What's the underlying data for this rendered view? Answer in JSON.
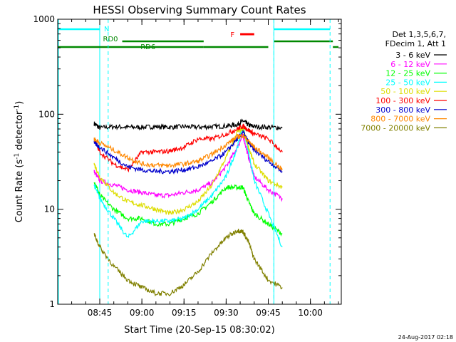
{
  "chart_data": {
    "type": "line",
    "title": "HESSI Observing Summary Count Rates",
    "xlabel": "Start Time (20-Sep-15 08:30:02)",
    "ylabel": "Count Rate (s⁻¹ detector⁻¹)",
    "ylabel_parts": {
      "main": "Count Rate (s",
      "exp1": "-1",
      "mid": " detector",
      "exp2": "-1",
      "end": ")"
    },
    "y_scale": "log",
    "ylim": [
      1,
      1000
    ],
    "xlim": [
      "08:30:02",
      "10:11:00"
    ],
    "x_ticks": [
      "08:45",
      "09:00",
      "09:15",
      "09:30",
      "09:45",
      "10:00"
    ],
    "y_ticks": [
      "1",
      "10",
      "100",
      "1000"
    ],
    "grid": false,
    "legend_position": "right",
    "legend_header": [
      "Det 1,3,5,6,7,",
      "FDecim 1, Att 1"
    ],
    "date_stamp": "24-Aug-2017 02:18",
    "night_intervals": [
      [
        "08:30:02",
        "08:45"
      ],
      [
        "09:47",
        "10:11"
      ]
    ],
    "saa_markers": [
      "08:30:02",
      "08:48",
      "09:47",
      "10:07"
    ],
    "annotations": [
      {
        "label": "N",
        "color": "#00ffff",
        "segments": [
          [
            "08:30:02",
            "08:45"
          ],
          [
            "09:47",
            "10:07"
          ]
        ]
      },
      {
        "label": "F",
        "color": "#ff0000",
        "segments": [
          [
            "09:35",
            "09:40"
          ]
        ]
      },
      {
        "label": "RD0",
        "color": "#008800",
        "segments": [
          [
            "08:53",
            "09:22"
          ],
          [
            "09:47",
            "10:08"
          ]
        ]
      },
      {
        "label": "RD6",
        "color": "#008800",
        "segments": [
          [
            "08:30:02",
            "09:22"
          ],
          [
            "09:22",
            "09:45"
          ],
          [
            "10:08",
            "10:10"
          ]
        ]
      }
    ],
    "series": [
      {
        "name": "3 - 6 keV",
        "color": "#000000",
        "x": [
          "08:43",
          "08:45",
          "08:50",
          "08:55",
          "09:00",
          "09:05",
          "09:10",
          "09:15",
          "09:20",
          "09:25",
          "09:30",
          "09:34",
          "09:36",
          "09:38",
          "09:40",
          "09:45",
          "09:50"
        ],
        "y": [
          80,
          72,
          74,
          73,
          73,
          74,
          73,
          74,
          73,
          74,
          75,
          78,
          85,
          77,
          74,
          73,
          72
        ]
      },
      {
        "name": "6 - 12 keV",
        "color": "#ff00ff",
        "x": [
          "08:43",
          "08:45",
          "08:50",
          "08:55",
          "09:00",
          "09:05",
          "09:10",
          "09:15",
          "09:20",
          "09:25",
          "09:30",
          "09:34",
          "09:36",
          "09:38",
          "09:40",
          "09:45",
          "09:50"
        ],
        "y": [
          25,
          20,
          18,
          16,
          15,
          14,
          14,
          15,
          16,
          19,
          28,
          45,
          60,
          35,
          22,
          16,
          13
        ]
      },
      {
        "name": "12 - 25 keV",
        "color": "#00ff00",
        "x": [
          "08:43",
          "08:45",
          "08:50",
          "08:55",
          "09:00",
          "09:05",
          "09:10",
          "09:15",
          "09:20",
          "09:25",
          "09:30",
          "09:34",
          "09:36",
          "09:38",
          "09:40",
          "09:45",
          "09:50"
        ],
        "y": [
          20,
          14,
          10,
          8,
          8,
          7,
          7,
          8,
          9,
          12,
          17,
          17,
          17,
          12,
          9,
          7,
          5.5
        ]
      },
      {
        "name": "25 - 50 keV",
        "color": "#00ffff",
        "x": [
          "08:43",
          "08:45",
          "08:50",
          "08:55",
          "09:00",
          "09:05",
          "09:10",
          "09:15",
          "09:20",
          "09:25",
          "09:30",
          "09:34",
          "09:36",
          "09:38",
          "09:40",
          "09:45",
          "09:50"
        ],
        "y": [
          18,
          13,
          8,
          5,
          7.5,
          7.5,
          7.5,
          8,
          10,
          14,
          22,
          45,
          75,
          40,
          20,
          9,
          4
        ]
      },
      {
        "name": "50 - 100 keV",
        "color": "#dddd00",
        "x": [
          "08:43",
          "08:45",
          "08:50",
          "08:55",
          "09:00",
          "09:05",
          "09:10",
          "09:15",
          "09:20",
          "09:25",
          "09:30",
          "09:34",
          "09:36",
          "09:38",
          "09:40",
          "09:45",
          "09:50"
        ],
        "y": [
          30,
          22,
          15,
          12,
          11,
          10,
          9,
          10,
          12,
          18,
          35,
          65,
          70,
          45,
          30,
          20,
          17
        ]
      },
      {
        "name": "100 - 300 keV",
        "color": "#ff0000",
        "x": [
          "08:43",
          "08:45",
          "08:50",
          "08:55",
          "09:00",
          "09:05",
          "09:10",
          "09:15",
          "09:20",
          "09:25",
          "09:30",
          "09:34",
          "09:36",
          "09:38",
          "09:40",
          "09:45",
          "09:50"
        ],
        "y": [
          55,
          40,
          30,
          26,
          40,
          40,
          41,
          45,
          55,
          55,
          62,
          70,
          75,
          68,
          62,
          55,
          40
        ]
      },
      {
        "name": "300 - 800 keV",
        "color": "#0000cc",
        "x": [
          "08:43",
          "08:45",
          "08:50",
          "08:55",
          "09:00",
          "09:05",
          "09:10",
          "09:15",
          "09:20",
          "09:25",
          "09:30",
          "09:34",
          "09:36",
          "09:38",
          "09:40",
          "09:45",
          "09:50"
        ],
        "y": [
          50,
          45,
          35,
          28,
          26,
          25,
          25,
          26,
          28,
          32,
          40,
          55,
          65,
          50,
          42,
          32,
          25
        ]
      },
      {
        "name": "800 - 7000 keV",
        "color": "#ff8800",
        "x": [
          "08:43",
          "08:45",
          "08:50",
          "08:55",
          "09:00",
          "09:05",
          "09:10",
          "09:15",
          "09:20",
          "09:25",
          "09:30",
          "09:34",
          "09:36",
          "09:38",
          "09:40",
          "09:45",
          "09:50"
        ],
        "y": [
          55,
          50,
          42,
          35,
          30,
          29,
          29,
          30,
          32,
          38,
          48,
          58,
          60,
          52,
          45,
          35,
          26
        ]
      },
      {
        "name": "7000 - 20000 keV",
        "color": "#808000",
        "x": [
          "08:43",
          "08:45",
          "08:50",
          "08:55",
          "09:00",
          "09:05",
          "09:10",
          "09:15",
          "09:20",
          "09:25",
          "09:30",
          "09:34",
          "09:36",
          "09:38",
          "09:40",
          "09:45",
          "09:50"
        ],
        "y": [
          5.5,
          4,
          2.5,
          1.8,
          1.5,
          1.3,
          1.3,
          1.6,
          2.2,
          3.5,
          5,
          6,
          5.8,
          4.5,
          3,
          1.8,
          1.5
        ]
      }
    ]
  }
}
